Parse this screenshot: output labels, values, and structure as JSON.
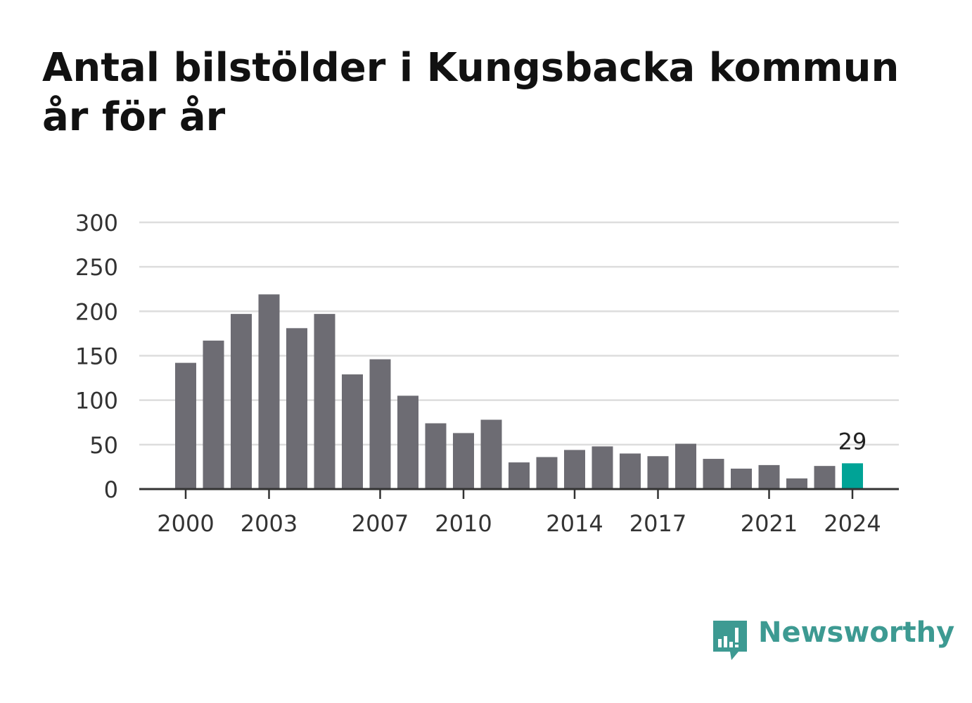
{
  "title": "Antal bilstölder i Kungsbacka kommun år för år",
  "brand": {
    "name": "Newsworthy",
    "icon": "newsworthy-logo-icon",
    "color": "#3d9a92"
  },
  "colors": {
    "bar": "#6d6c73",
    "highlight": "#00a396",
    "grid": "#dddddd",
    "axis": "#333333"
  },
  "chart_data": {
    "type": "bar",
    "title": "Antal bilstölder i Kungsbacka kommun år för år",
    "xlabel": "",
    "ylabel": "",
    "categories": [
      "2000",
      "2001",
      "2002",
      "2003",
      "2004",
      "2005",
      "2006",
      "2007",
      "2008",
      "2009",
      "2010",
      "2011",
      "2012",
      "2013",
      "2014",
      "2015",
      "2016",
      "2017",
      "2018",
      "2019",
      "2020",
      "2021",
      "2022",
      "2023",
      "2024"
    ],
    "values": [
      142,
      167,
      197,
      219,
      181,
      197,
      129,
      146,
      105,
      74,
      63,
      78,
      30,
      36,
      44,
      48,
      40,
      37,
      51,
      34,
      23,
      27,
      12,
      26,
      29
    ],
    "x_tick_labels": [
      "2000",
      "2003",
      "2007",
      "2010",
      "2014",
      "2017",
      "2021",
      "2024"
    ],
    "y_ticks": [
      0,
      50,
      100,
      150,
      200,
      250,
      300
    ],
    "ylim": [
      0,
      300
    ],
    "grid": true,
    "highlight": {
      "category": "2024",
      "label": "29"
    }
  }
}
